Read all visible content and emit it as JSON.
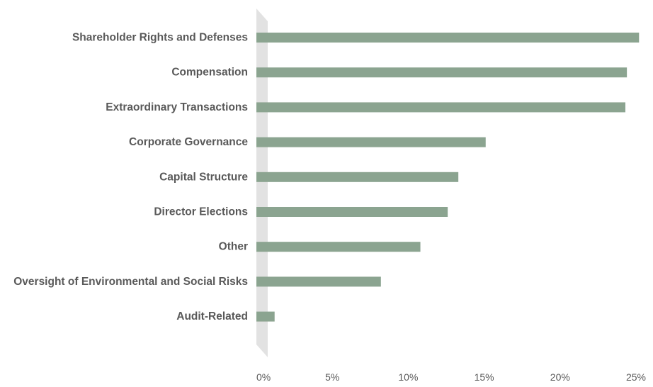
{
  "chart_data": {
    "type": "bar",
    "orientation": "horizontal",
    "title": "",
    "xlabel": "",
    "ylabel": "",
    "categories": [
      "Shareholder Rights and Defenses",
      "Compensation",
      "Extraordinary Transactions",
      "Corporate Governance",
      "Capital Structure",
      "Director Elections",
      "Other",
      "Oversight of Environmental and Social Risks",
      "Audit-Related"
    ],
    "values": [
      25.2,
      24.4,
      24.3,
      15.1,
      13.3,
      12.6,
      10.8,
      8.2,
      1.2
    ],
    "x_ticks": [
      "0%",
      "5%",
      "10%",
      "15%",
      "20%",
      "25%"
    ],
    "xlim": [
      0,
      25
    ],
    "unit": "%",
    "grid": false,
    "bar_color": "#8ba490",
    "axis_band_color": "#e2e2e2"
  }
}
